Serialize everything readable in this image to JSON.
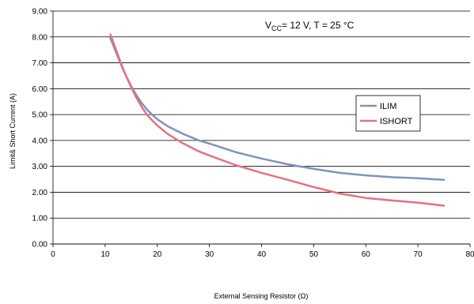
{
  "chart_data": {
    "type": "line",
    "title": "",
    "xlabel": "External Sensing Resistor (Ω)",
    "ylabel": "Limit& Short Current  (A)",
    "xlim": [
      0,
      80
    ],
    "ylim": [
      0,
      9
    ],
    "x_ticks": [
      "0",
      "10",
      "20",
      "30",
      "40",
      "50",
      "60",
      "70",
      "80"
    ],
    "y_ticks": [
      "0.00",
      "1.00",
      "2.00",
      "3.00",
      "4.00",
      "5.00",
      "6.00",
      "7.00",
      "8.00",
      "9.00"
    ],
    "grid": "horizontal",
    "legend_position": "right",
    "annotation": {
      "prefix": "V",
      "subscript": "CC",
      "suffix": "= 12 V, T = 25 °C"
    },
    "series": [
      {
        "name": "ILIM",
        "color": "#7f93bf",
        "x": [
          11,
          12,
          13,
          14,
          15,
          16,
          17,
          18,
          19,
          20,
          22,
          25,
          28,
          30,
          35,
          40,
          45,
          50,
          55,
          60,
          65,
          70,
          75
        ],
        "y": [
          7.95,
          7.45,
          6.95,
          6.5,
          6.1,
          5.75,
          5.45,
          5.2,
          5.0,
          4.82,
          4.55,
          4.25,
          4.0,
          3.88,
          3.55,
          3.3,
          3.08,
          2.9,
          2.75,
          2.65,
          2.58,
          2.54,
          2.48
        ]
      },
      {
        "name": "ISHORT",
        "color": "#e8707f",
        "x": [
          11,
          12,
          13,
          14,
          15,
          16,
          17,
          18,
          19,
          20,
          22,
          25,
          28,
          30,
          35,
          40,
          45,
          50,
          55,
          60,
          65,
          70,
          75
        ],
        "y": [
          8.1,
          7.55,
          7.0,
          6.5,
          6.05,
          5.65,
          5.3,
          5.0,
          4.78,
          4.58,
          4.25,
          3.88,
          3.58,
          3.42,
          3.05,
          2.75,
          2.48,
          2.2,
          1.95,
          1.78,
          1.68,
          1.6,
          1.48
        ]
      }
    ]
  }
}
